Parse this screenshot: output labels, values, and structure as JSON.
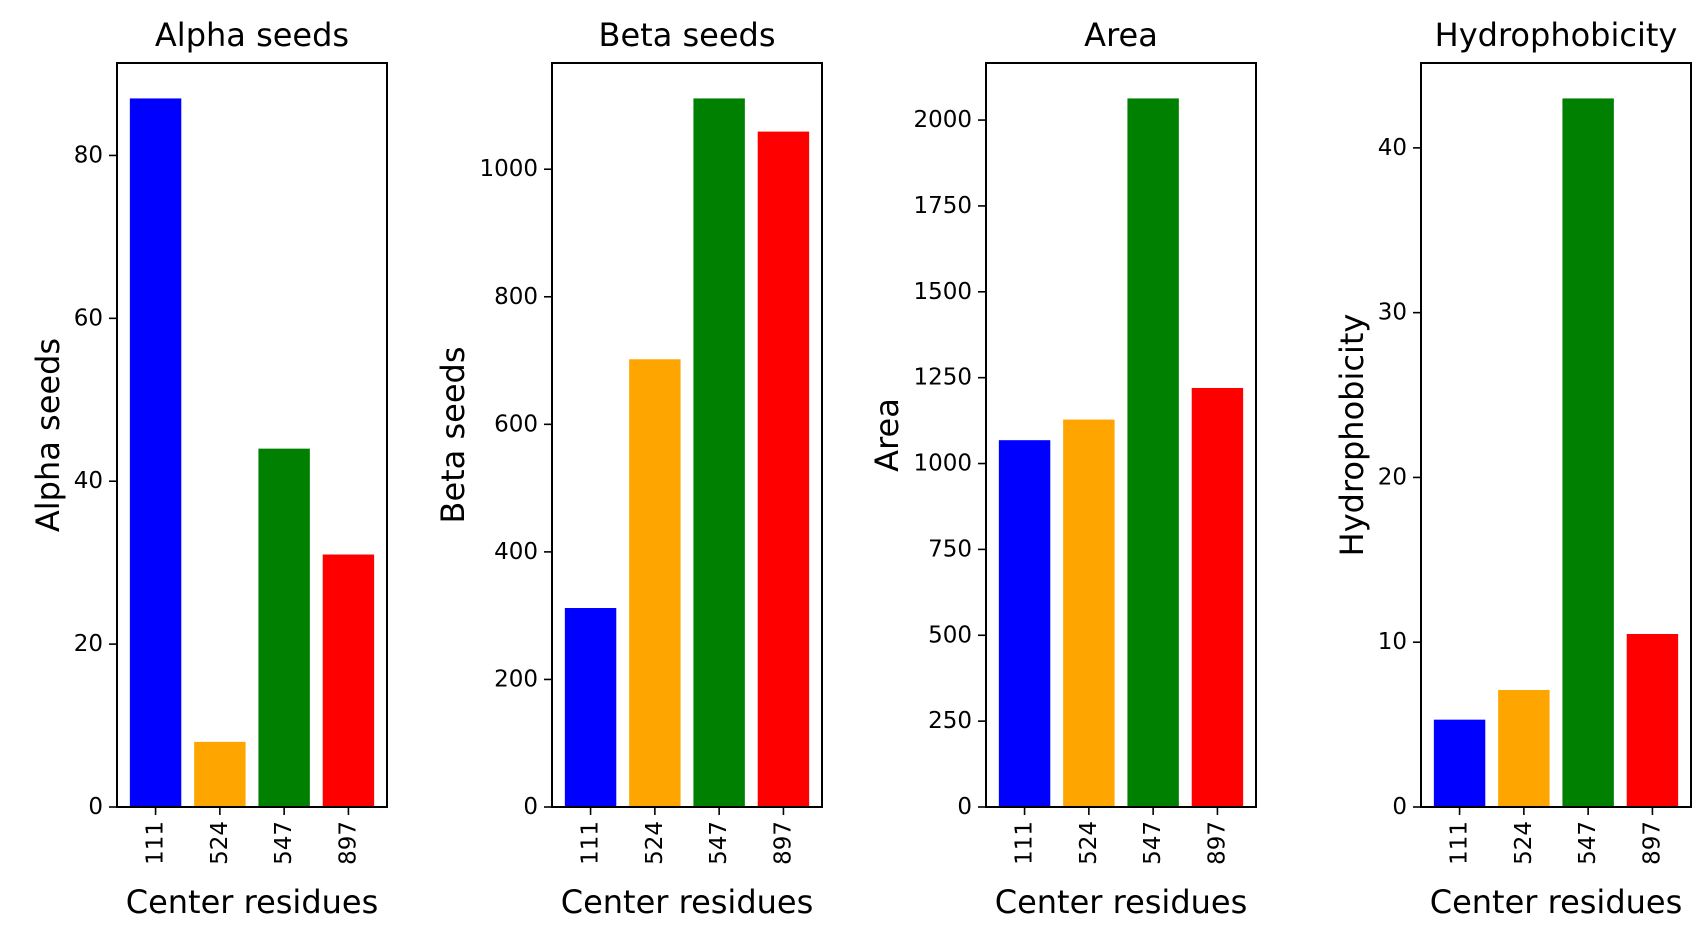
{
  "chart_data": [
    {
      "type": "bar",
      "title": "Alpha seeds",
      "xlabel": "Center residues",
      "ylabel": "Alpha seeds",
      "categories": [
        "111",
        "524",
        "547",
        "897"
      ],
      "values": [
        87,
        8,
        44,
        31
      ],
      "colors": [
        "#0000ff",
        "#ffa500",
        "#008000",
        "#ff0000"
      ],
      "ylim": [
        0,
        91.35
      ],
      "yticks": [
        0,
        20,
        40,
        60,
        80
      ],
      "grid": false,
      "legend": "none"
    },
    {
      "type": "bar",
      "title": "Beta seeds",
      "xlabel": "Center residues",
      "ylabel": "Beta seeds",
      "categories": [
        "111",
        "524",
        "547",
        "897"
      ],
      "values": [
        312,
        702,
        1111,
        1059
      ],
      "colors": [
        "#0000ff",
        "#ffa500",
        "#008000",
        "#ff0000"
      ],
      "ylim": [
        0,
        1166.55
      ],
      "yticks": [
        0,
        200,
        400,
        600,
        800,
        1000
      ],
      "grid": false,
      "legend": "none"
    },
    {
      "type": "bar",
      "title": "Area",
      "xlabel": "Center residues",
      "ylabel": "Area",
      "categories": [
        "111",
        "524",
        "547",
        "897"
      ],
      "values": [
        1068,
        1128,
        2063,
        1220
      ],
      "colors": [
        "#0000ff",
        "#ffa500",
        "#008000",
        "#ff0000"
      ],
      "ylim": [
        0,
        2166.15
      ],
      "yticks": [
        0,
        250,
        500,
        750,
        1000,
        1250,
        1500,
        1750,
        2000
      ],
      "grid": false,
      "legend": "none"
    },
    {
      "type": "bar",
      "title": "Hydrophobicity",
      "xlabel": "Center residues",
      "ylabel": "Hydrophobicity",
      "categories": [
        "111",
        "524",
        "547",
        "897"
      ],
      "values": [
        5.3,
        7.1,
        43.0,
        10.5
      ],
      "colors": [
        "#0000ff",
        "#ffa500",
        "#008000",
        "#ff0000"
      ],
      "ylim": [
        0,
        45.15
      ],
      "yticks": [
        0,
        10,
        20,
        30,
        40
      ],
      "grid": false,
      "legend": "none"
    }
  ]
}
